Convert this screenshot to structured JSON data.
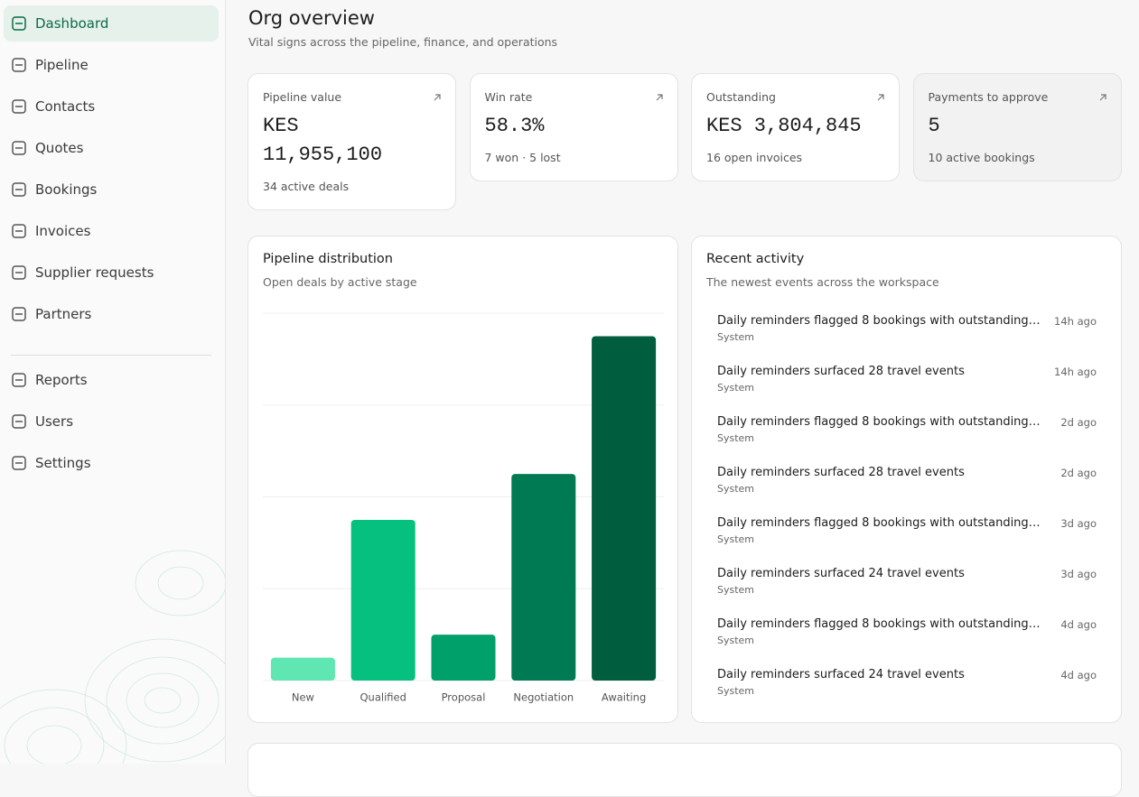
{
  "sidebar": {
    "nav": [
      "Dashboard",
      "Pipeline",
      "Contacts",
      "Quotes",
      "Bookings",
      "Invoices",
      "Supplier requests",
      "Partners"
    ],
    "nav_secondary": [
      "Reports",
      "Users",
      "Settings"
    ]
  },
  "header": {
    "title": "Org overview",
    "subtitle": "Vital signs across the pipeline, finance, and operations"
  },
  "kpis": [
    {
      "label": "Pipeline value",
      "value": "KES 11,955,100",
      "note": "34 active deals"
    },
    {
      "label": "Win rate",
      "value": "58.3%",
      "note": "7 won · 5 lost"
    },
    {
      "label": "Outstanding",
      "value": "KES 3,804,845",
      "note": "16 open invoices"
    },
    {
      "label": "Payments to approve",
      "value": "5",
      "note": "10 active bookings"
    }
  ],
  "chart_data": {
    "type": "bar",
    "title": "Pipeline distribution",
    "subtitle": "Open deals by active stage",
    "categories": [
      "New",
      "Qualified",
      "Proposal",
      "Negotiation",
      "Awaiting"
    ],
    "values": [
      1,
      7,
      2,
      9,
      15
    ],
    "colors": [
      "#5fe6b2",
      "#05c07e",
      "#00a06a",
      "#007a52",
      "#005e3f"
    ],
    "ylim": [
      0,
      16
    ],
    "yticks": [
      0,
      4,
      8,
      12,
      16
    ],
    "grid": true
  },
  "activity": {
    "title": "Recent activity",
    "subtitle": "The newest events across the workspace",
    "items": [
      {
        "text": "Daily reminders flagged 8 bookings with outstanding c…",
        "source": "System",
        "time": "14h ago"
      },
      {
        "text": "Daily reminders surfaced 28 travel events",
        "source": "System",
        "time": "14h ago"
      },
      {
        "text": "Daily reminders flagged 8 bookings with outstanding ch…",
        "source": "System",
        "time": "2d ago"
      },
      {
        "text": "Daily reminders surfaced 28 travel events",
        "source": "System",
        "time": "2d ago"
      },
      {
        "text": "Daily reminders flagged 8 bookings with outstanding ch…",
        "source": "System",
        "time": "3d ago"
      },
      {
        "text": "Daily reminders surfaced 24 travel events",
        "source": "System",
        "time": "3d ago"
      },
      {
        "text": "Daily reminders flagged 8 bookings with outstanding ch…",
        "source": "System",
        "time": "4d ago"
      },
      {
        "text": "Daily reminders surfaced 24 travel events",
        "source": "System",
        "time": "4d ago"
      }
    ]
  }
}
